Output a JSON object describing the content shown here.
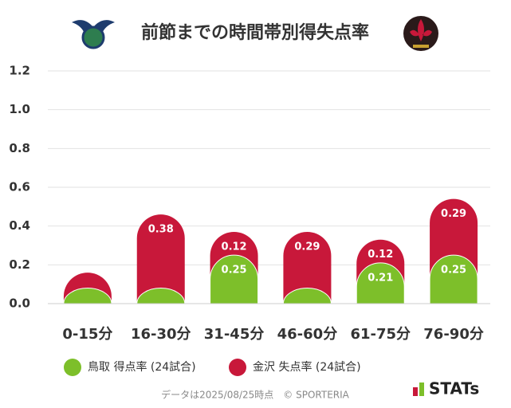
{
  "chart_data": {
    "type": "stacked-bar",
    "title": "前節までの時間帯別得失点率",
    "categories": [
      "0-15分",
      "16-30分",
      "31-45分",
      "46-60分",
      "61-75分",
      "76-90分"
    ],
    "series": [
      {
        "name": "鳥取 得点率 (24試合)",
        "color": "#7dbf2a",
        "values": [
          0.08,
          0.08,
          0.25,
          0.08,
          0.21,
          0.25
        ],
        "value_labels": [
          null,
          null,
          "0.25",
          null,
          "0.21",
          "0.25"
        ]
      },
      {
        "name": "金沢 失点率 (24試合)",
        "color": "#c8183a",
        "values": [
          0.08,
          0.38,
          0.12,
          0.29,
          0.12,
          0.29
        ],
        "value_labels": [
          null,
          "0.38",
          "0.12",
          "0.29",
          "0.12",
          "0.29"
        ]
      }
    ],
    "ylim": [
      0,
      1.2
    ],
    "yticks": [
      {
        "value": 0,
        "label": "0.0"
      },
      0.2,
      0.4,
      0.6,
      0.8,
      {
        "value": 1,
        "label": "1.0"
      },
      1.2
    ],
    "grid": true,
    "footnote": "データは2025/08/25時点　© SPORTERIA",
    "brand": "STATs"
  }
}
